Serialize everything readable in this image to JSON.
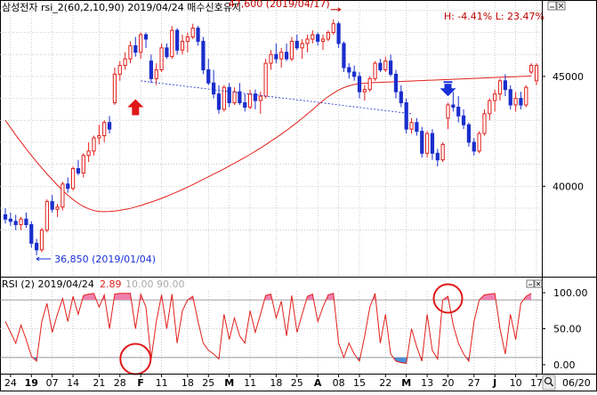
{
  "header": {
    "title": "삼성전자 rsi_2(60,2,10,90)  2019/04/24 매수신호유지",
    "stats": "H: -4.41%   L: 23.47%"
  },
  "rsi_panel": {
    "label": "RSI  (2)  2019/04/24",
    "value": "2.89",
    "levels_text": "10.00  90.00"
  },
  "x_axis": {
    "end_date_label": "06/20"
  },
  "colors": {
    "up": "#e0201b",
    "down": "#1a2ecc",
    "ma": "#e0201b",
    "rsi_line": "#e0201b",
    "rsi_fill": "#f080b0",
    "grid": "#b8b8b8",
    "buy_arrow": "#e01818",
    "sell_arrow": "#1a30d8",
    "annotation_high": "#c00000",
    "annotation_low": "#1a30d8"
  },
  "icons": {
    "panel_minimize": "minimize-icon",
    "panel_close": "close-icon",
    "zoom": "magnifier-icon"
  },
  "chart_data": [
    {
      "type": "candlestick",
      "title": "삼성전자 rsi_2(60,2,10,90)  2019/04/24 매수신호유지",
      "ylim": [
        36000,
        48400
      ],
      "y_ticks": [
        40000,
        45000
      ],
      "y_tick_labels": [
        "40000",
        "45000"
      ],
      "x_tick_labels": [
        "24",
        "19",
        "07",
        "14",
        "21",
        "28",
        "F",
        "11",
        "18",
        "25",
        "M",
        "11",
        "18",
        "25",
        "A",
        "08",
        "15",
        "22",
        "M",
        "13",
        "20",
        "27",
        "J",
        "10",
        "17"
      ],
      "grid": true,
      "moving_average_period": 60,
      "annotations": [
        {
          "text": "47,600 (2019/04/17)",
          "value": 47600,
          "date": "2019/04/17",
          "kind": "high"
        },
        {
          "text": "36,850 (2019/01/04)",
          "value": 36850,
          "date": "2019/01/04",
          "kind": "low"
        }
      ],
      "signals": [
        {
          "type": "buy",
          "date": "2019/02/08"
        },
        {
          "type": "sell",
          "date": "2019/05/23"
        }
      ],
      "candles": [
        [
          38700,
          39000,
          38300,
          38500
        ],
        [
          38500,
          38800,
          38200,
          38400
        ],
        [
          38400,
          38700,
          38000,
          38250
        ],
        [
          38250,
          38600,
          38000,
          38500
        ],
        [
          38500,
          38800,
          38100,
          38250
        ],
        [
          38250,
          38400,
          37200,
          37400
        ],
        [
          37400,
          37600,
          36850,
          37100
        ],
        [
          37100,
          38100,
          37000,
          38000
        ],
        [
          38000,
          39400,
          37900,
          39300
        ],
        [
          39300,
          39600,
          38800,
          38950
        ],
        [
          38950,
          39200,
          38600,
          39050
        ],
        [
          39050,
          40200,
          38900,
          40100
        ],
        [
          40100,
          40400,
          39700,
          39900
        ],
        [
          39900,
          40900,
          39800,
          40800
        ],
        [
          40800,
          41200,
          40500,
          40600
        ],
        [
          40600,
          41500,
          40400,
          41400
        ],
        [
          41400,
          42000,
          41100,
          41600
        ],
        [
          41600,
          42300,
          41400,
          42200
        ],
        [
          42200,
          42800,
          41900,
          42300
        ],
        [
          42300,
          43000,
          42000,
          42900
        ],
        [
          42900,
          43200,
          42400,
          42600
        ],
        [
          43800,
          45400,
          43700,
          45100
        ],
        [
          45100,
          45700,
          44800,
          45500
        ],
        [
          45500,
          46100,
          45300,
          45800
        ],
        [
          45800,
          46600,
          45600,
          46400
        ],
        [
          46400,
          46800,
          45900,
          46100
        ],
        [
          46100,
          47000,
          45800,
          46900
        ],
        [
          46900,
          47000,
          46300,
          46700
        ],
        [
          45700,
          46000,
          44700,
          44900
        ],
        [
          44900,
          45600,
          44600,
          45300
        ],
        [
          45300,
          46500,
          45200,
          46300
        ],
        [
          46300,
          46500,
          45800,
          45900
        ],
        [
          45900,
          47300,
          45800,
          47100
        ],
        [
          47100,
          47200,
          46000,
          46200
        ],
        [
          46200,
          46900,
          46000,
          46600
        ],
        [
          46600,
          47000,
          46100,
          46800
        ],
        [
          46800,
          47400,
          46700,
          47200
        ],
        [
          47200,
          47300,
          46400,
          46600
        ],
        [
          46600,
          46800,
          45100,
          45300
        ],
        [
          45300,
          45800,
          44600,
          44700
        ],
        [
          44700,
          45300,
          44000,
          44200
        ],
        [
          44200,
          44600,
          43300,
          43500
        ],
        [
          43500,
          44600,
          43400,
          44500
        ],
        [
          44500,
          44700,
          43600,
          43800
        ],
        [
          43800,
          44500,
          43700,
          44300
        ],
        [
          44300,
          44700,
          43700,
          43800
        ],
        [
          43800,
          44200,
          43400,
          43600
        ],
        [
          43600,
          44400,
          43500,
          44200
        ],
        [
          44200,
          44400,
          43500,
          43900
        ],
        [
          43900,
          44300,
          43300,
          44100
        ],
        [
          44100,
          45800,
          44000,
          45600
        ],
        [
          45600,
          46200,
          45300,
          46000
        ],
        [
          46000,
          46500,
          45600,
          45800
        ],
        [
          45800,
          46300,
          45400,
          46100
        ],
        [
          46100,
          46500,
          45700,
          45800
        ],
        [
          45800,
          46800,
          45700,
          46600
        ],
        [
          46600,
          46900,
          46200,
          46300
        ],
        [
          46300,
          46700,
          45800,
          46500
        ],
        [
          46500,
          46900,
          46100,
          46700
        ],
        [
          46700,
          47100,
          46500,
          46900
        ],
        [
          46900,
          47000,
          46400,
          46600
        ],
        [
          46600,
          46900,
          46200,
          46700
        ],
        [
          46700,
          47100,
          46600,
          47000
        ],
        [
          47000,
          47600,
          46900,
          47400
        ],
        [
          47400,
          47500,
          46300,
          46500
        ],
        [
          46500,
          46600,
          45200,
          45400
        ],
        [
          45400,
          45600,
          44900,
          45200
        ],
        [
          45200,
          45500,
          44800,
          45000
        ],
        [
          45000,
          45200,
          44000,
          44300
        ],
        [
          44300,
          44600,
          43900,
          44400
        ],
        [
          44400,
          45000,
          44300,
          44900
        ],
        [
          44900,
          45700,
          44800,
          45600
        ],
        [
          45600,
          45800,
          45200,
          45300
        ],
        [
          45300,
          45900,
          45200,
          45700
        ],
        [
          45700,
          46000,
          45000,
          45100
        ],
        [
          45100,
          45300,
          44000,
          44300
        ],
        [
          44300,
          44600,
          43600,
          43800
        ],
        [
          43800,
          44000,
          42400,
          42600
        ],
        [
          42600,
          43100,
          42400,
          42900
        ],
        [
          42900,
          43100,
          42300,
          42500
        ],
        [
          42500,
          42700,
          41300,
          41500
        ],
        [
          41500,
          42500,
          41300,
          42400
        ],
        [
          42400,
          42600,
          41200,
          41500
        ],
        [
          41500,
          41700,
          40900,
          41200
        ],
        [
          41200,
          42000,
          41100,
          41900
        ],
        [
          43100,
          43800,
          42600,
          43700
        ],
        [
          43700,
          44300,
          43400,
          43600
        ],
        [
          43600,
          44100,
          42900,
          43200
        ],
        [
          43200,
          43500,
          42600,
          42800
        ],
        [
          42800,
          42900,
          41800,
          42000
        ],
        [
          42000,
          42200,
          41400,
          41600
        ],
        [
          41600,
          42500,
          41500,
          42400
        ],
        [
          42400,
          43500,
          42300,
          43300
        ],
        [
          43300,
          44000,
          43000,
          43900
        ],
        [
          43900,
          44400,
          43400,
          44200
        ],
        [
          44200,
          44900,
          43900,
          44800
        ],
        [
          44800,
          45100,
          44100,
          44400
        ],
        [
          44400,
          44600,
          43500,
          43700
        ],
        [
          43700,
          44300,
          43400,
          44000
        ],
        [
          44000,
          44300,
          43500,
          43700
        ],
        [
          43700,
          44600,
          43600,
          44500
        ],
        [
          45200,
          45600,
          45100,
          45500
        ],
        [
          44800,
          45600,
          44600,
          45500
        ]
      ],
      "ma_values": [
        43000,
        42660,
        42330,
        42010,
        41700,
        41400,
        41110,
        40830,
        40560,
        40300,
        40050,
        39810,
        39590,
        39390,
        39220,
        39080,
        38970,
        38890,
        38850,
        38840,
        38850,
        38870,
        38900,
        38940,
        38990,
        39050,
        39120,
        39200,
        39280,
        39360,
        39450,
        39540,
        39640,
        39740,
        39850,
        39960,
        40070,
        40190,
        40310,
        40430,
        40550,
        40670,
        40790,
        40920,
        41050,
        41180,
        41310,
        41450,
        41590,
        41740,
        41890,
        42050,
        42210,
        42370,
        42540,
        42720,
        42900,
        43090,
        43290,
        43490,
        43700,
        43900,
        44080,
        44240,
        44380,
        44490,
        44570,
        44630,
        44670,
        44690,
        44710,
        44720,
        44730,
        44740,
        44750,
        44760,
        44770,
        44780,
        44790,
        44800,
        44810,
        44820,
        44830,
        44840,
        44850,
        44860,
        44870,
        44880,
        44890,
        44900,
        44910,
        44920,
        44930,
        44940,
        44950,
        44960,
        44970,
        44980,
        44990,
        45000,
        45010,
        45020
      ]
    },
    {
      "type": "line",
      "title": "RSI  (2)  2019/04/24",
      "ylim": [
        0,
        100
      ],
      "y_ticks": [
        0,
        50,
        100
      ],
      "y_tick_labels": [
        "0.00",
        "50.00",
        "100.00"
      ],
      "levels": [
        10,
        90
      ],
      "series": [
        {
          "name": "RSI",
          "values": [
            60,
            45,
            30,
            55,
            35,
            12,
            5,
            60,
            85,
            45,
            70,
            92,
            60,
            95,
            70,
            96,
            98,
            99,
            80,
            97,
            50,
            98,
            99,
            99,
            99,
            50,
            98,
            80,
            8,
            60,
            97,
            50,
            98,
            30,
            75,
            90,
            95,
            60,
            30,
            20,
            15,
            8,
            70,
            35,
            65,
            40,
            30,
            75,
            45,
            70,
            96,
            98,
            65,
            88,
            40,
            96,
            45,
            70,
            95,
            98,
            60,
            80,
            97,
            99,
            30,
            10,
            30,
            15,
            5,
            40,
            80,
            99,
            30,
            70,
            15,
            5,
            3,
            2,
            50,
            25,
            5,
            70,
            20,
            8,
            90,
            95,
            55,
            30,
            15,
            5,
            60,
            90,
            97,
            98,
            99,
            50,
            15,
            70,
            35,
            85,
            95,
            99
          ]
        }
      ]
    }
  ]
}
